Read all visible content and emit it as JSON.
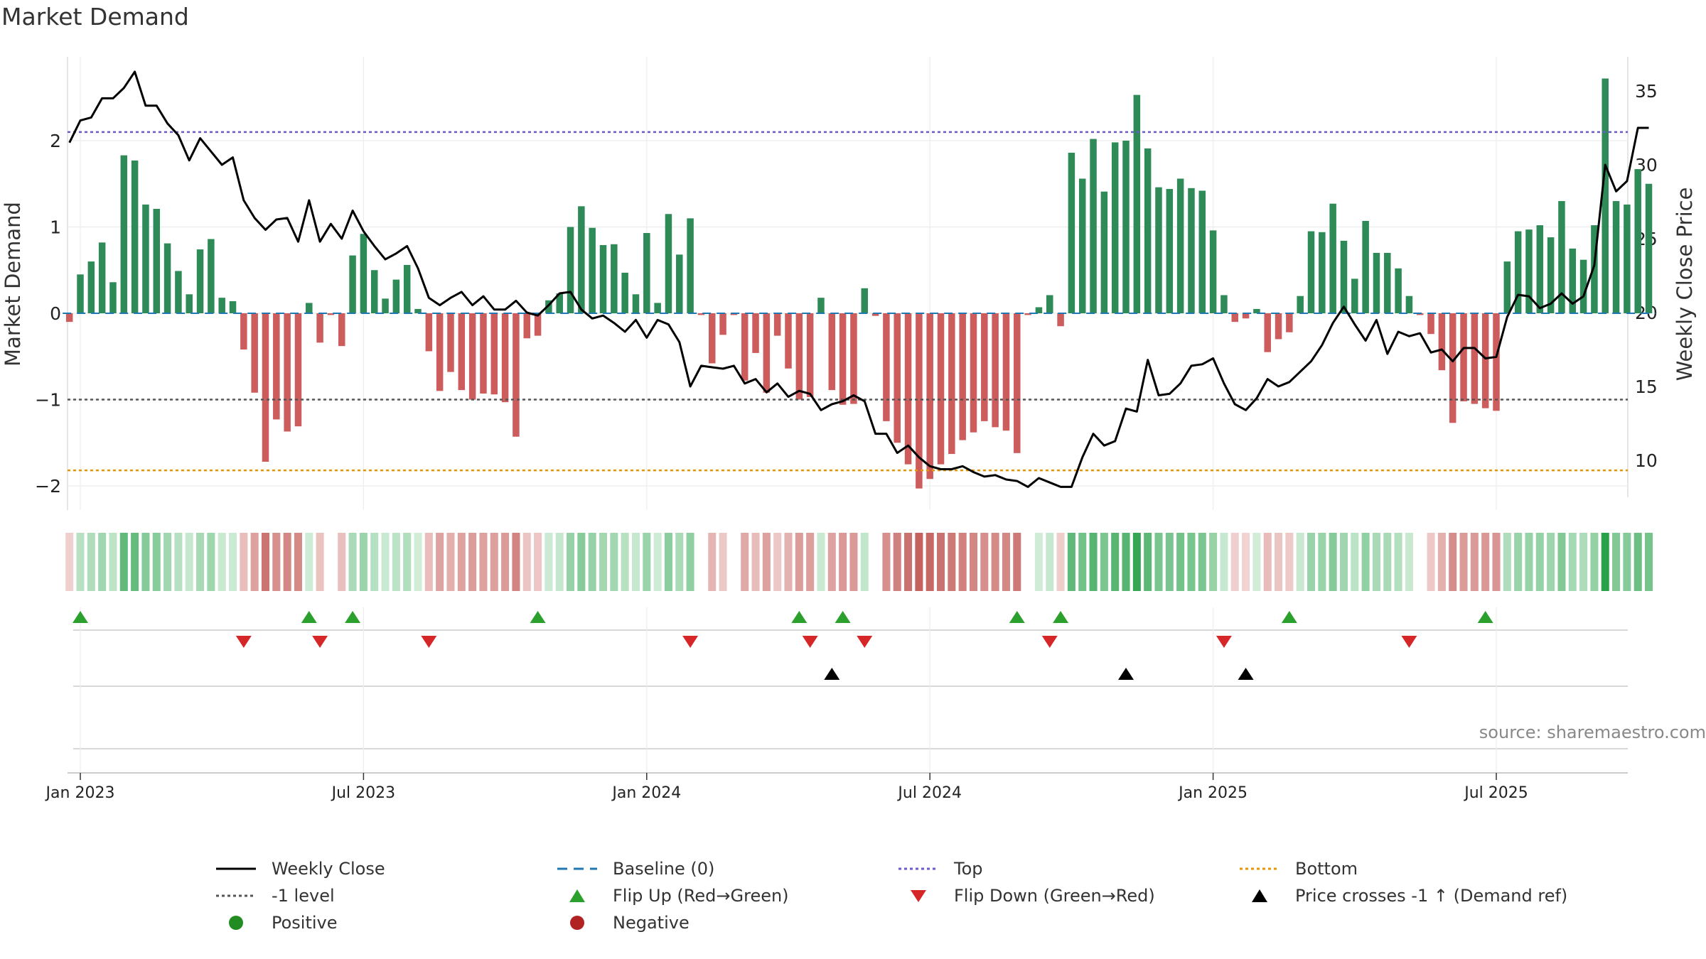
{
  "title": "Market Demand",
  "source": "source: sharemaestro.com",
  "colors": {
    "positive": "#2e8b57",
    "negative": "#cd5c5c",
    "close": "#000000",
    "baseline": "#1f77b4",
    "top": "#6a5acd",
    "minus1": "#555555",
    "bottom": "#e69500",
    "flip_up": "#2ca02c",
    "flip_down": "#d62728",
    "cross": "#000000"
  },
  "legend": [
    {
      "id": "weekly-close",
      "label": "Weekly Close",
      "marker": "line-solid",
      "color": "#000000"
    },
    {
      "id": "baseline",
      "label": "Baseline (0)",
      "marker": "line-dash",
      "color": "#1f77b4"
    },
    {
      "id": "top",
      "label": "Top",
      "marker": "line-dot",
      "color": "#6a5acd"
    },
    {
      "id": "bottom",
      "label": "Bottom",
      "marker": "line-dot",
      "color": "#e69500"
    },
    {
      "id": "minus1",
      "label": "-1 level",
      "marker": "line-dot",
      "color": "#555555"
    },
    {
      "id": "flip-up",
      "label": "Flip Up (Red→Green)",
      "marker": "triangle-up",
      "color": "#2ca02c"
    },
    {
      "id": "flip-down",
      "label": "Flip Down (Green→Red)",
      "marker": "triangle-down",
      "color": "#d62728"
    },
    {
      "id": "price-cross",
      "label": "Price crosses -1 ↑ (Demand ref)",
      "marker": "triangle-up",
      "color": "#000000"
    },
    {
      "id": "positive",
      "label": "Positive",
      "marker": "circle",
      "color": "#228b22"
    },
    {
      "id": "negative",
      "label": "Negative",
      "marker": "circle",
      "color": "#b22222"
    }
  ],
  "chart_data": {
    "type": "bar",
    "title": "Market Demand",
    "ylabel": "Market Demand",
    "y2label": "Weekly Close Price",
    "ylim": [
      -2.3,
      2.9
    ],
    "y2lim": [
      7.2,
      38.5
    ],
    "y_ticks": [
      -2,
      -1,
      0,
      1,
      2
    ],
    "y2_ticks": [
      10,
      15,
      20,
      25,
      30,
      35
    ],
    "x_ticks": [
      "Jan 2023",
      "Jul 2023",
      "Jan 2024",
      "Jul 2024",
      "Jan 2025",
      "Jul 2025"
    ],
    "x_tick_weeks": [
      0,
      26,
      52,
      78,
      104,
      130
    ],
    "levels": {
      "top": 2.1,
      "minus1": -1.0,
      "bottom": -1.82,
      "baseline": 0
    },
    "first_week_offset": -1,
    "demand": [
      -0.1,
      0.45,
      0.6,
      0.82,
      0.36,
      1.83,
      1.77,
      1.26,
      1.21,
      0.81,
      0.49,
      0.22,
      0.74,
      0.86,
      0.18,
      0.14,
      -0.42,
      -0.92,
      -1.72,
      -1.23,
      -1.37,
      -1.31,
      0.12,
      -0.34,
      -0.02,
      -0.38,
      0.67,
      0.92,
      0.5,
      0.17,
      0.39,
      0.56,
      0.05,
      -0.44,
      -0.9,
      -0.68,
      -0.89,
      -1.0,
      -0.93,
      -0.94,
      -1.03,
      -1.43,
      -0.29,
      -0.26,
      0.15,
      0.23,
      1.0,
      1.24,
      0.99,
      0.79,
      0.8,
      0.47,
      0.22,
      0.93,
      0.12,
      1.15,
      0.68,
      1.1,
      -0.02,
      -0.58,
      -0.25,
      -0.02,
      -0.78,
      -0.46,
      -0.92,
      -0.26,
      -0.64,
      -1.0,
      -0.97,
      0.18,
      -0.89,
      -1.06,
      -1.05,
      0.29,
      -0.03,
      -1.25,
      -1.5,
      -1.75,
      -2.03,
      -1.92,
      -1.75,
      -1.63,
      -1.47,
      -1.38,
      -1.25,
      -1.32,
      -1.36,
      -1.62,
      -0.02,
      0.07,
      0.21,
      -0.15,
      1.86,
      1.56,
      2.02,
      1.41,
      1.98,
      2.0,
      2.53,
      1.91,
      1.46,
      1.44,
      1.56,
      1.45,
      1.42,
      0.96,
      0.21,
      -0.1,
      -0.06,
      0.05,
      -0.45,
      -0.3,
      -0.22,
      0.2,
      0.95,
      0.94,
      1.27,
      0.84,
      0.4,
      1.07,
      0.7,
      0.7,
      0.52,
      0.2,
      -0.02,
      -0.24,
      -0.66,
      -1.27,
      -1.02,
      -1.05,
      -1.1,
      -1.13,
      0.6,
      0.95,
      0.97,
      1.02,
      0.88,
      1.3,
      0.75,
      0.62,
      1.02,
      2.72,
      1.3,
      1.26,
      1.67,
      1.5
    ],
    "close": [
      31.5,
      33.0,
      33.2,
      34.5,
      34.5,
      35.2,
      36.3,
      34.0,
      34.0,
      32.8,
      32.0,
      30.3,
      31.8,
      30.9,
      30.0,
      30.5,
      27.6,
      26.4,
      25.6,
      26.3,
      26.4,
      24.8,
      27.6,
      24.8,
      26.0,
      25.0,
      26.9,
      25.5,
      24.5,
      23.6,
      24.0,
      24.5,
      23.0,
      21.0,
      20.5,
      21.0,
      21.4,
      20.5,
      21.1,
      20.2,
      20.2,
      20.8,
      20.0,
      19.8,
      20.5,
      21.3,
      21.4,
      20.2,
      19.6,
      19.8,
      19.3,
      18.7,
      19.5,
      18.3,
      19.5,
      19.2,
      18.0,
      15.0,
      16.4,
      16.3,
      16.2,
      16.4,
      15.2,
      15.5,
      14.6,
      15.2,
      14.3,
      14.7,
      14.5,
      13.4,
      13.8,
      14.0,
      14.4,
      14.0,
      11.8,
      11.8,
      10.5,
      11.0,
      10.2,
      9.6,
      9.4,
      9.4,
      9.6,
      9.2,
      8.9,
      9.0,
      8.7,
      8.6,
      8.2,
      8.8,
      8.5,
      8.2,
      8.2,
      10.2,
      11.8,
      11.0,
      11.3,
      13.5,
      13.3,
      16.8,
      14.4,
      14.5,
      15.2,
      16.4,
      16.5,
      16.9,
      15.2,
      13.8,
      13.4,
      14.2,
      15.5,
      15.0,
      15.3,
      16.0,
      16.7,
      17.8,
      19.3,
      20.4,
      19.2,
      18.1,
      19.5,
      17.2,
      18.7,
      18.4,
      18.6,
      17.3,
      17.5,
      16.7,
      17.6,
      17.6,
      16.9,
      17.0,
      19.7,
      21.2,
      21.1,
      20.3,
      20.6,
      21.3,
      20.6,
      21.1,
      23.2,
      30.0,
      28.2,
      28.9,
      32.5,
      32.5
    ],
    "flip_up_weeks": [
      0,
      21,
      25,
      42,
      66,
      70,
      86,
      90,
      111,
      129
    ],
    "flip_down_weeks": [
      15,
      22,
      32,
      56,
      67,
      72,
      89,
      105,
      122
    ],
    "price_cross_weeks": [
      69,
      96,
      107
    ]
  }
}
